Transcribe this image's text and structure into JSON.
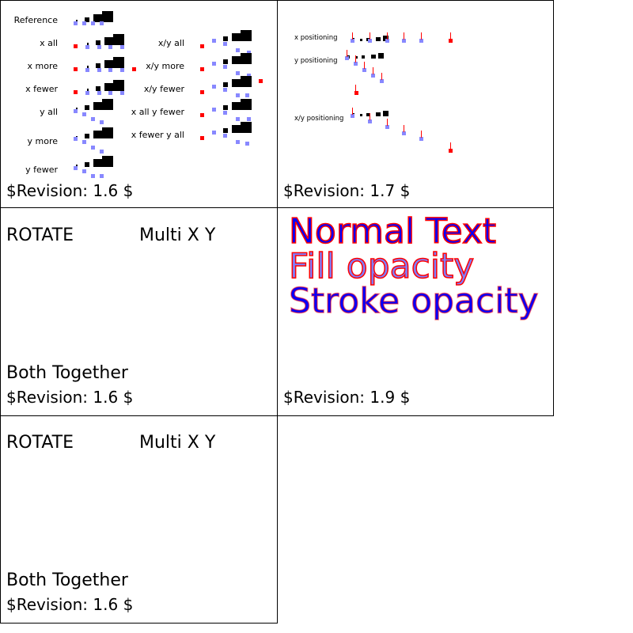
{
  "colors": {
    "marker_blue": "#8888ff",
    "marker_red": "#ff0000",
    "glyph": "#000000"
  },
  "panel1": {
    "labels": [
      "Reference",
      "x all",
      "x more",
      "x fewer",
      "y all",
      "y more",
      "y fewer",
      "x/y all",
      "x/y more",
      "x/y fewer",
      "x all y fewer",
      "x fewer y all"
    ],
    "revision": "$Revision: 1.6 $"
  },
  "panel2": {
    "labels": [
      "x positioning",
      "y positioning",
      "x/y positioning"
    ],
    "revision": "$Revision: 1.7 $"
  },
  "panel3": {
    "rotate": "ROTATE",
    "multi": "Multi X Y",
    "both": "Both Together",
    "revision": "$Revision: 1.6 $"
  },
  "panel4": {
    "normal": "Normal Text",
    "fill_opacity": "Fill opacity",
    "stroke_opacity": "Stroke opacity",
    "revision": "$Revision: 1.9 $"
  },
  "panel5": {
    "rotate": "ROTATE",
    "multi": "Multi X Y",
    "both": "Both Together",
    "revision": "$Revision: 1.6 $"
  }
}
